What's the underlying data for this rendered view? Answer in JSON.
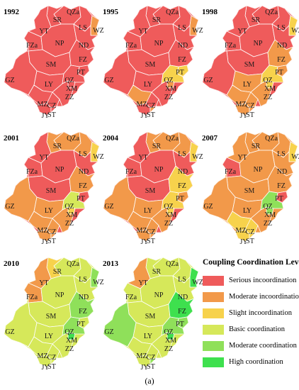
{
  "colors": {
    "serious": "#ef5b5b",
    "moderate_in": "#f2994a",
    "slight": "#f7d24c",
    "basic": "#d6e85a",
    "moderate_co": "#8fe05a",
    "high": "#3ee04e"
  },
  "maps": [
    {
      "year": "1992",
      "cities": {
        "QZa": "serious",
        "SR": "serious",
        "YT": "serious",
        "LS": "serious",
        "WZ": "moderate_in",
        "FZa": "serious",
        "NP": "serious",
        "ND": "serious",
        "SM": "serious",
        "FZ": "serious",
        "GZ": "serious",
        "LY": "serious",
        "PT": "serious",
        "QZ": "serious",
        "XM": "serious",
        "ZZ": "serious",
        "MZ": "serious",
        "CZ": "serious",
        "JY": "serious",
        "ST": "serious"
      }
    },
    {
      "year": "1995",
      "cities": {
        "QZa": "serious",
        "SR": "serious",
        "YT": "serious",
        "LS": "serious",
        "WZ": "moderate_in",
        "FZa": "serious",
        "NP": "serious",
        "ND": "serious",
        "SM": "serious",
        "FZ": "serious",
        "GZ": "serious",
        "LY": "serious",
        "PT": "slight",
        "QZ": "slight",
        "XM": "moderate_in",
        "ZZ": "serious",
        "MZ": "moderate_in",
        "CZ": "serious",
        "JY": "serious",
        "ST": "moderate_in"
      }
    },
    {
      "year": "1998",
      "cities": {
        "QZa": "serious",
        "SR": "serious",
        "YT": "serious",
        "LS": "serious",
        "WZ": "slight",
        "FZa": "serious",
        "NP": "serious",
        "ND": "serious",
        "SM": "serious",
        "FZ": "moderate_in",
        "GZ": "serious",
        "LY": "moderate_in",
        "PT": "moderate_in",
        "QZ": "slight",
        "XM": "slight",
        "ZZ": "moderate_in",
        "MZ": "moderate_in",
        "CZ": "moderate_in",
        "JY": "moderate_in",
        "ST": "moderate_in"
      }
    },
    {
      "year": "2001",
      "cities": {
        "QZa": "moderate_in",
        "SR": "moderate_in",
        "YT": "serious",
        "LS": "moderate_in",
        "WZ": "slight",
        "FZa": "serious",
        "NP": "serious",
        "ND": "serious",
        "SM": "serious",
        "FZ": "moderate_in",
        "GZ": "moderate_in",
        "LY": "moderate_in",
        "PT": "serious",
        "QZ": "basic",
        "XM": "slight",
        "ZZ": "moderate_in",
        "MZ": "moderate_in",
        "CZ": "moderate_in",
        "JY": "moderate_in",
        "ST": "moderate_in"
      }
    },
    {
      "year": "2004",
      "cities": {
        "QZa": "moderate_in",
        "SR": "moderate_in",
        "YT": "serious",
        "LS": "moderate_in",
        "WZ": "slight",
        "FZa": "serious",
        "NP": "serious",
        "ND": "serious",
        "SM": "serious",
        "FZ": "slight",
        "GZ": "moderate_in",
        "LY": "moderate_in",
        "PT": "moderate_in",
        "QZ": "slight",
        "XM": "slight",
        "ZZ": "moderate_in",
        "MZ": "moderate_in",
        "CZ": "moderate_in",
        "JY": "moderate_in",
        "ST": "moderate_in"
      }
    },
    {
      "year": "2007",
      "cities": {
        "QZa": "moderate_in",
        "SR": "moderate_in",
        "YT": "moderate_in",
        "LS": "moderate_in",
        "WZ": "slight",
        "FZa": "serious",
        "NP": "moderate_in",
        "ND": "moderate_in",
        "SM": "moderate_in",
        "FZ": "moderate_in",
        "GZ": "moderate_in",
        "LY": "moderate_in",
        "PT": "serious",
        "QZ": "moderate_co",
        "XM": "moderate_co",
        "ZZ": "moderate_in",
        "MZ": "slight",
        "CZ": "slight",
        "JY": "slight",
        "ST": "slight"
      }
    },
    {
      "year": "2010",
      "cities": {
        "QZa": "basic",
        "SR": "slight",
        "YT": "moderate_in",
        "LS": "basic",
        "WZ": "moderate_co",
        "FZa": "moderate_in",
        "NP": "basic",
        "ND": "basic",
        "SM": "basic",
        "FZ": "moderate_co",
        "GZ": "basic",
        "LY": "basic",
        "PT": "basic",
        "QZ": "moderate_co",
        "XM": "high",
        "ZZ": "basic",
        "MZ": "basic",
        "CZ": "basic",
        "JY": "basic",
        "ST": "basic"
      }
    },
    {
      "year": "2013",
      "cities": {
        "QZa": "basic",
        "SR": "basic",
        "YT": "moderate_in",
        "LS": "basic",
        "WZ": "high",
        "FZa": "basic",
        "NP": "basic",
        "ND": "basic",
        "SM": "basic",
        "FZ": "high",
        "GZ": "moderate_co",
        "LY": "basic",
        "PT": "moderate_co",
        "QZ": "moderate_co",
        "XM": "high",
        "ZZ": "basic",
        "MZ": "basic",
        "CZ": "basic",
        "JY": "basic",
        "ST": "moderate_co"
      }
    }
  ],
  "legend": {
    "title": "Coupling Coordination Level",
    "items": [
      {
        "key": "serious",
        "label": "Serious incoordination"
      },
      {
        "key": "moderate_in",
        "label": "Moderate incoordination"
      },
      {
        "key": "slight",
        "label": "Slight incoordination"
      },
      {
        "key": "basic",
        "label": "Basic coordination"
      },
      {
        "key": "moderate_co",
        "label": "Moderate coordination"
      },
      {
        "key": "high",
        "label": "High coordination"
      }
    ]
  },
  "caption": "(a)"
}
